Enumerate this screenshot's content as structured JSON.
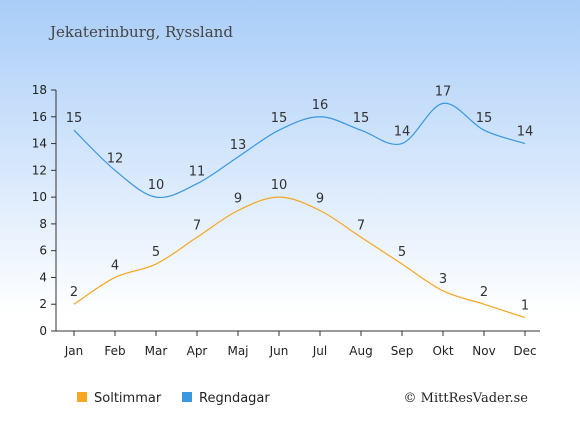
{
  "chart_data": {
    "type": "line",
    "title": "Jekaterinburg, Ryssland",
    "categories": [
      "Jan",
      "Feb",
      "Mar",
      "Apr",
      "Maj",
      "Jun",
      "Jul",
      "Aug",
      "Sep",
      "Okt",
      "Nov",
      "Dec"
    ],
    "series": [
      {
        "name": "Soltimmar",
        "color": "#f5a623",
        "values": [
          2,
          4,
          5,
          7,
          9,
          10,
          9,
          7,
          5,
          3,
          2,
          1
        ]
      },
      {
        "name": "Regndagar",
        "color": "#3a97e0",
        "values": [
          15,
          12,
          10,
          11,
          13,
          15,
          16,
          15,
          14,
          17,
          15,
          14
        ]
      }
    ],
    "yticks": [
      0,
      2,
      4,
      6,
      8,
      10,
      12,
      14,
      16,
      18
    ],
    "ylim": [
      0,
      18
    ],
    "grid": false,
    "legend_position": "bottom-left"
  },
  "footer": {
    "copyright": "© MittResVader.se"
  },
  "style": {
    "background_top": "#a9cdf8",
    "background_bottom": "#ffffff"
  }
}
